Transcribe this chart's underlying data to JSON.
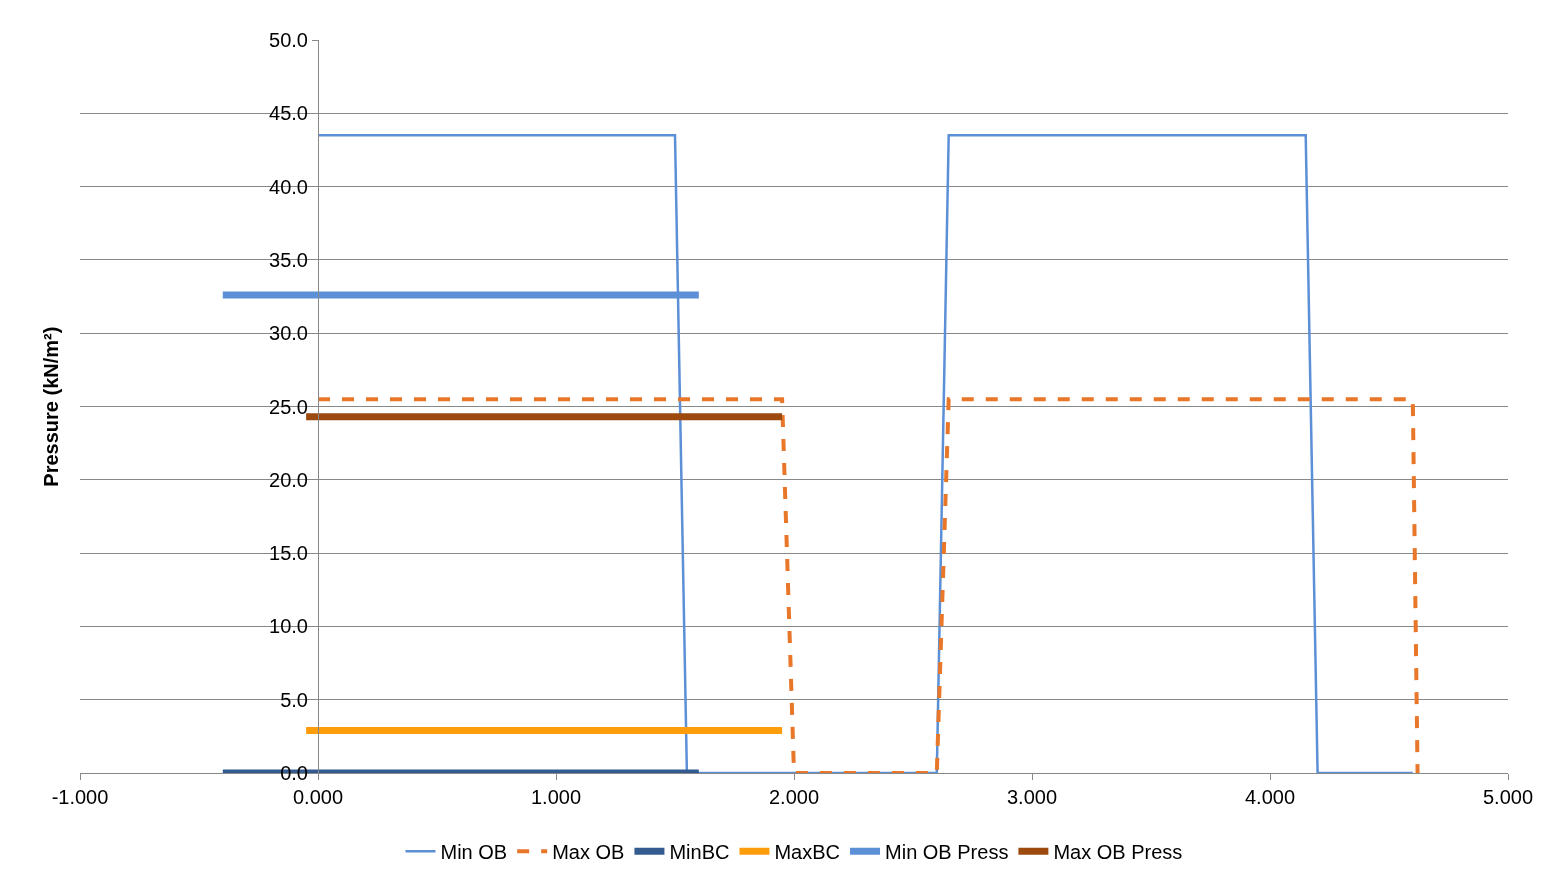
{
  "chart_data": {
    "type": "line",
    "ylabel": "Pressure (kN/m²)",
    "xlim": [
      -1,
      5
    ],
    "xticks": [
      {
        "value": -1,
        "label": "-1.000"
      },
      {
        "value": 0,
        "label": "0.000"
      },
      {
        "value": 1,
        "label": "1.000"
      },
      {
        "value": 2,
        "label": "2.000"
      },
      {
        "value": 3,
        "label": "3.000"
      },
      {
        "value": 4,
        "label": "4.000"
      },
      {
        "value": 5,
        "label": "5.000"
      }
    ],
    "ylim": [
      0,
      50
    ],
    "yticks": [
      {
        "value": 0,
        "label": "0.0"
      },
      {
        "value": 5,
        "label": "5.0"
      },
      {
        "value": 10,
        "label": "10.0"
      },
      {
        "value": 15,
        "label": "15.0"
      },
      {
        "value": 20,
        "label": "20.0"
      },
      {
        "value": 25,
        "label": "25.0"
      },
      {
        "value": 30,
        "label": "30.0"
      },
      {
        "value": 35,
        "label": "35.0"
      },
      {
        "value": 40,
        "label": "40.0"
      },
      {
        "value": 45,
        "label": "45.0"
      },
      {
        "value": 50,
        "label": "50.0"
      }
    ],
    "grid": "y",
    "legend": "bottom",
    "marker": "none",
    "series": [
      {
        "name": "Min OB",
        "color": "#5b8fd6",
        "line_style": "solid",
        "x": [
          0,
          1.5,
          1.55,
          2.6,
          2.65,
          4.15,
          4.2,
          4.6
        ],
        "values": [
          43.5,
          43.5,
          0,
          0,
          43.5,
          43.5,
          0,
          0
        ]
      },
      {
        "name": "Max OB",
        "color": "#e8772a",
        "line_style": "dashed",
        "x": [
          0,
          1.95,
          2.0,
          2.6,
          2.65,
          4.6,
          4.62
        ],
        "values": [
          25.5,
          25.5,
          0,
          0,
          25.5,
          25.5,
          0
        ]
      },
      {
        "name": "MinBC",
        "color": "#345b8f",
        "line_style": "solid",
        "x": [
          -0.4,
          1.6
        ],
        "values": [
          0,
          0
        ]
      },
      {
        "name": "MaxBC",
        "color": "#fd9d0b",
        "line_style": "solid",
        "x": [
          -0.05,
          1.95
        ],
        "values": [
          2.9,
          2.9
        ]
      },
      {
        "name": "Min OB Press",
        "color": "#5b8fd6",
        "line_style": "solid",
        "x": [
          -0.4,
          1.6
        ],
        "values": [
          32.6,
          32.6
        ]
      },
      {
        "name": "Max OB Press",
        "color": "#9c4a0d",
        "line_style": "solid",
        "x": [
          -0.05,
          1.95
        ],
        "values": [
          24.3,
          24.3
        ]
      }
    ]
  }
}
